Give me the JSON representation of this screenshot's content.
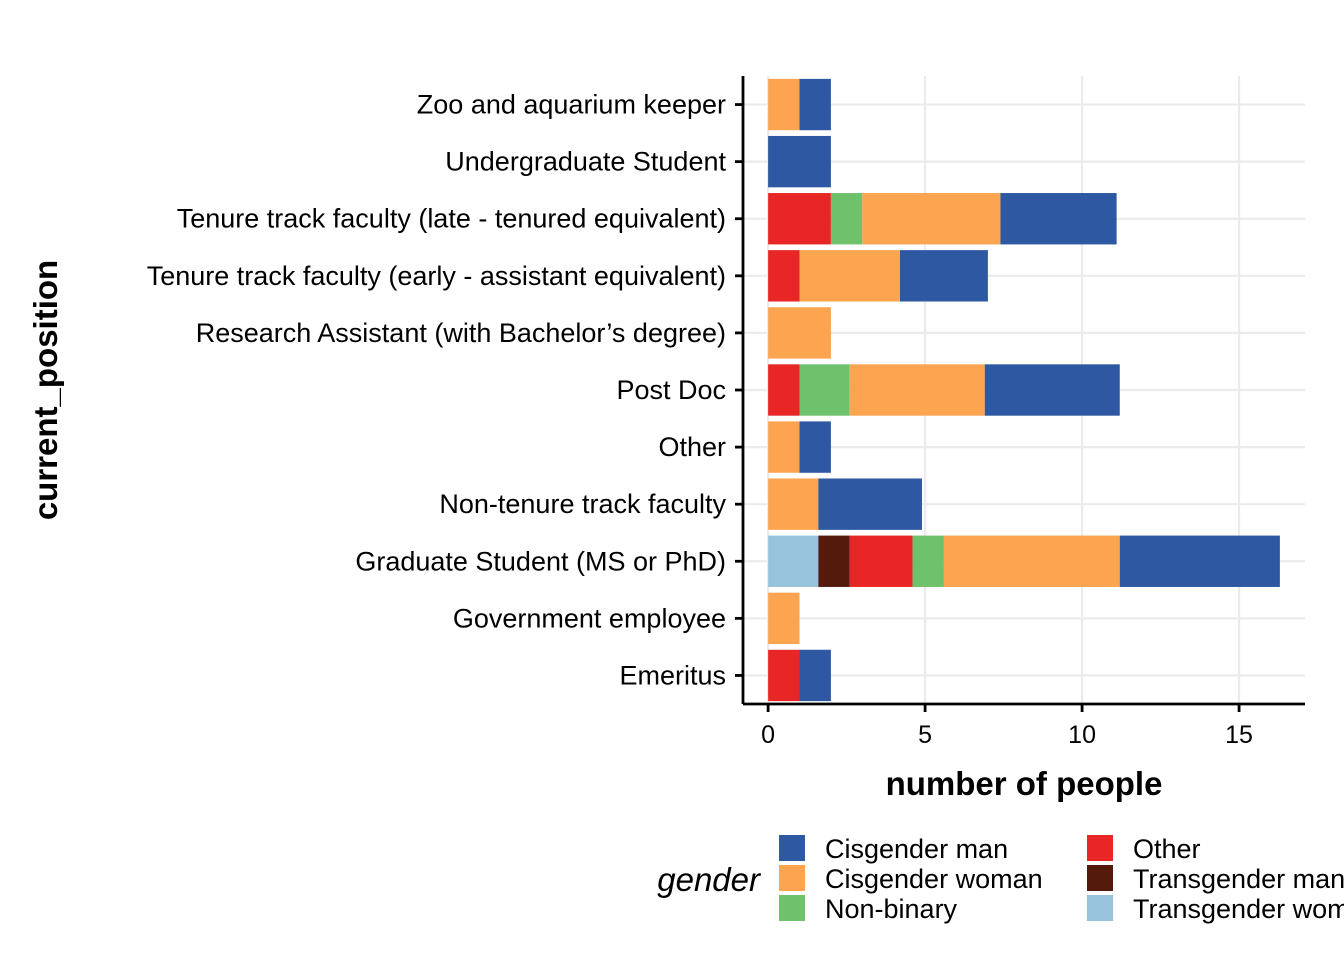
{
  "chart_data": {
    "type": "bar",
    "orientation": "horizontal",
    "stacked": true,
    "xlabel": "number of people",
    "ylabel": "current_position",
    "xlim": [
      -0.8,
      17.1
    ],
    "xticks": [
      0,
      5,
      10,
      15
    ],
    "grid": true,
    "legend_position": "bottom",
    "legend_title": "gender",
    "categories": [
      "Emeritus",
      "Government employee",
      "Graduate Student (MS or PhD)",
      "Non-tenure track faculty",
      "Other",
      "Post Doc",
      "Research Assistant (with Bachelor’s degree)",
      "Tenure track faculty (early - assistant equivalent)",
      "Tenure track faculty (late - tenured equivalent)",
      "Undergraduate Student",
      "Zoo and aquarium keeper"
    ],
    "stack_order": [
      "Transgender woman",
      "Transgender man",
      "Other",
      "Non-binary",
      "Cisgender woman",
      "Cisgender man"
    ],
    "series": [
      {
        "name": "Cisgender man",
        "color": "#2E58A2",
        "values": [
          1,
          0,
          5.1,
          3.3,
          1,
          4.3,
          0,
          2.8,
          3.7,
          2,
          1
        ]
      },
      {
        "name": "Cisgender woman",
        "color": "#FCA450",
        "values": [
          0,
          1,
          5.6,
          1.6,
          1,
          4.3,
          2,
          3.2,
          4.4,
          0,
          1
        ]
      },
      {
        "name": "Non-binary",
        "color": "#70C16C",
        "values": [
          0,
          0,
          1,
          0,
          0,
          1.6,
          0,
          0,
          1,
          0,
          0
        ]
      },
      {
        "name": "Other",
        "color": "#E82626",
        "values": [
          1,
          0,
          2,
          0,
          0,
          1,
          0,
          1,
          2,
          0,
          0
        ]
      },
      {
        "name": "Transgender man",
        "color": "#541B0C",
        "values": [
          0,
          0,
          1,
          0,
          0,
          0,
          0,
          0,
          0,
          0,
          0
        ]
      },
      {
        "name": "Transgender woman",
        "color": "#98C3DC",
        "values": [
          0,
          0,
          1.6,
          0,
          0,
          0,
          0,
          0,
          0,
          0,
          0
        ]
      }
    ]
  },
  "legend": {
    "title": "gender",
    "items": [
      {
        "label": "Cisgender man",
        "color": "#2E58A2"
      },
      {
        "label": "Cisgender woman",
        "color": "#FCA450"
      },
      {
        "label": "Non-binary",
        "color": "#70C16C"
      },
      {
        "label": "Other",
        "color": "#E82626"
      },
      {
        "label": "Transgender man",
        "color": "#541B0C"
      },
      {
        "label": "Transgender woman",
        "color": "#98C3DC"
      }
    ]
  }
}
